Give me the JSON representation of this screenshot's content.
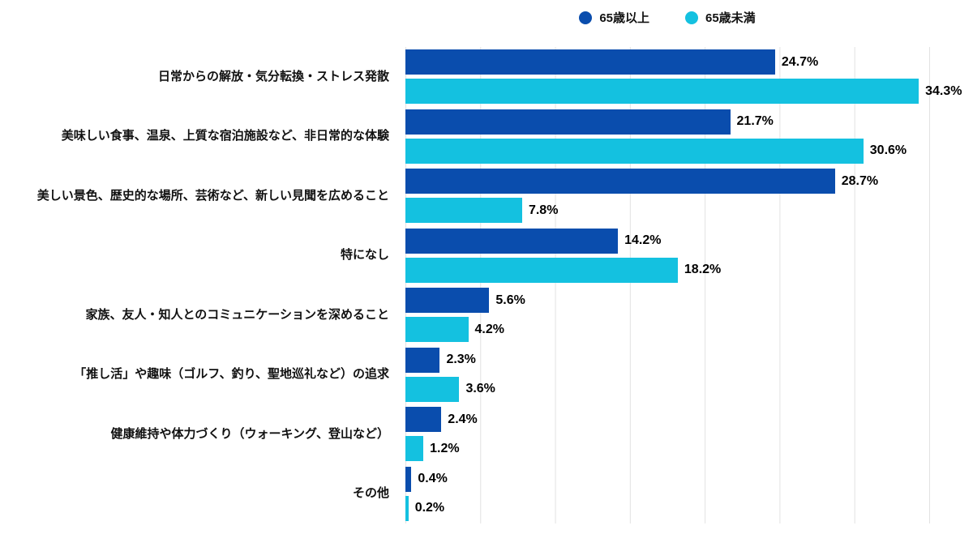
{
  "chart_data": {
    "type": "bar",
    "orientation": "horizontal",
    "title": "",
    "xlabel": "",
    "ylabel": "",
    "xlim": [
      0,
      35
    ],
    "gridline_step": 5,
    "grid": true,
    "legend_position": "top-center",
    "value_suffix": "%",
    "categories": [
      "日常からの解放・気分転換・ストレス発散",
      "美味しい食事、温泉、上質な宿泊施設など、非日常的な体験",
      "美しい景色、歴史的な場所、芸術など、新しい見聞を広めること",
      "特になし",
      "家族、友人・知人とのコミュニケーションを深めること",
      "「推し活」や趣味（ゴルフ、釣り、聖地巡礼など）の追求",
      "健康維持や体力づくり（ウォーキング、登山など）",
      "その他"
    ],
    "series": [
      {
        "name": "65歳以上",
        "color": "#0A4DAD",
        "values": [
          24.7,
          21.7,
          28.7,
          14.2,
          5.6,
          2.3,
          2.4,
          0.4
        ]
      },
      {
        "name": "65歳未満",
        "color": "#14C1E0",
        "values": [
          34.3,
          30.6,
          7.8,
          18.2,
          4.2,
          3.6,
          1.2,
          0.2
        ]
      }
    ],
    "colors": {
      "grid": "#E2E2E2",
      "text": "#111111",
      "value_text": "#000000",
      "background": "#FFFFFF"
    }
  }
}
